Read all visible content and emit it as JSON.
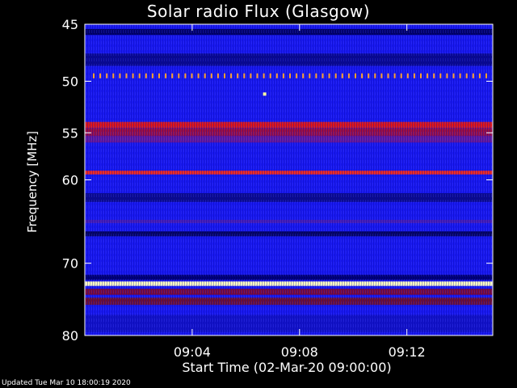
{
  "chart_data": {
    "type": "heatmap",
    "title": "Solar radio Flux (Glasgow)",
    "xlabel": "Start Time (02-Mar-20 09:00:00)",
    "ylabel": "Frequency [MHz]",
    "y_ticks": [
      45,
      50,
      55,
      60,
      70,
      80
    ],
    "x_ticks": [
      "09:04",
      "09:08",
      "09:12"
    ],
    "x_tick_minutes": [
      4,
      8,
      12
    ],
    "xlim_minutes": [
      0,
      15.2
    ],
    "ylim": [
      45,
      80
    ],
    "y_scale": "log",
    "background_color": "#1a1af0",
    "bands": [
      {
        "freq_from": 45.4,
        "freq_to": 45.9,
        "color": "#000060"
      },
      {
        "freq_from": 47.5,
        "freq_to": 48.6,
        "color": "#0a0a8c"
      },
      {
        "freq_from": 53.9,
        "freq_to": 54.5,
        "color": "#e01818"
      },
      {
        "freq_from": 54.5,
        "freq_to": 55.3,
        "color": "#a01040"
      },
      {
        "freq_from": 55.3,
        "freq_to": 56.0,
        "color": "#6a1a9a"
      },
      {
        "freq_from": 59.0,
        "freq_to": 59.4,
        "color": "#ff2a10"
      },
      {
        "freq_from": 61.5,
        "freq_to": 62.5,
        "color": "#0c0c8a"
      },
      {
        "freq_from": 64.6,
        "freq_to": 65.0,
        "color": "#4a20b8"
      },
      {
        "freq_from": 66.0,
        "freq_to": 66.6,
        "color": "#05055a"
      },
      {
        "freq_from": 71.5,
        "freq_to": 72.2,
        "color": "#000070"
      },
      {
        "freq_from": 72.4,
        "freq_to": 73.0,
        "color": "#ffffc0"
      },
      {
        "freq_from": 73.4,
        "freq_to": 74.2,
        "color": "#800a30"
      },
      {
        "freq_from": 74.6,
        "freq_to": 75.6,
        "color": "#701030"
      },
      {
        "freq_from": 77.0,
        "freq_to": 79.5,
        "color": "#1414c8"
      }
    ],
    "spike_row_freq": 49.5,
    "spike_color": "#ffa030",
    "spot": {
      "minute": 6.7,
      "freq": 51.2,
      "color": "#ffffa0"
    }
  },
  "footer": {
    "updated": "Updated Tue Mar 10 18:00:19 2020"
  }
}
